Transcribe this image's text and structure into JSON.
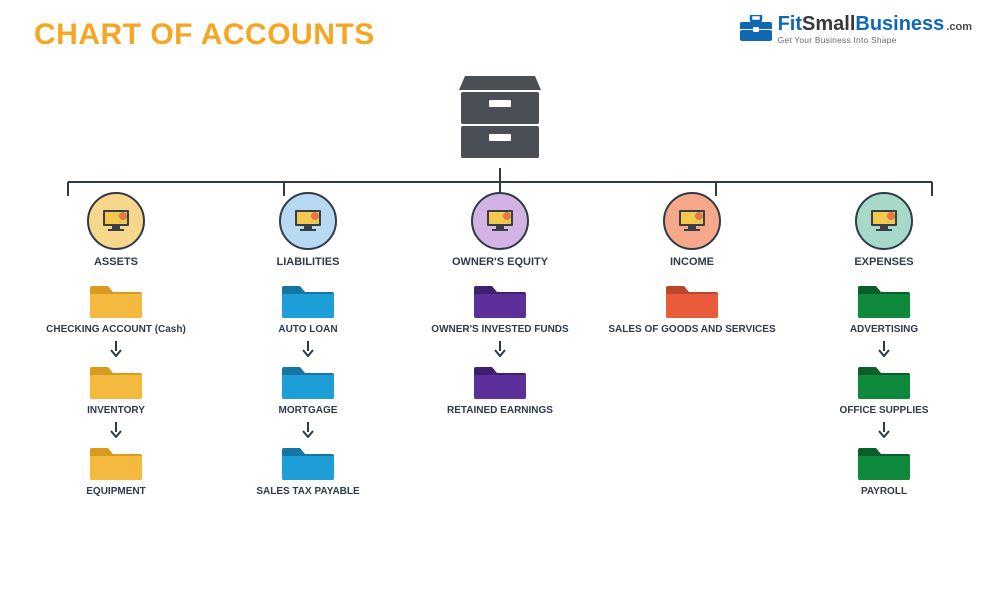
{
  "title": {
    "text": "CHART OF ACCOUNTS",
    "color": "#f5a623",
    "fontsize": 30
  },
  "logo": {
    "brand_blue": "#1068b3",
    "brand_dark": "#383838",
    "main_parts": {
      "fit": "Fit",
      "small": "Small",
      "business": "Business"
    },
    "dotcom": ".com",
    "tagline": "Get Your Business Into Shape"
  },
  "diagram": {
    "type": "tree",
    "root_icon": "file-cabinet",
    "root_icon_color": "#4a4f55",
    "connector_color": "#2f3a4a",
    "label_color": "#2f3a4a",
    "categories": [
      {
        "id": "assets",
        "label": "ASSETS",
        "circle_fill": "#f6d78b",
        "circle_border": "#2f3a4a",
        "folder_color": "#f4b93f",
        "folder_shadow": "#d89b1f",
        "items": [
          "CHECKING ACCOUNT (Cash)",
          "INVENTORY",
          "EQUIPMENT"
        ]
      },
      {
        "id": "liabilities",
        "label": "LIABILITIES",
        "circle_fill": "#b7d9f2",
        "circle_border": "#2f3a4a",
        "folder_color": "#1f9fd8",
        "folder_shadow": "#1576a3",
        "items": [
          "AUTO LOAN",
          "MORTGAGE",
          "SALES TAX PAYABLE"
        ]
      },
      {
        "id": "equity",
        "label": "OWNER'S EQUITY",
        "circle_fill": "#d3b3e4",
        "circle_border": "#2f3a4a",
        "folder_color": "#5d2f9b",
        "folder_shadow": "#3f1f6e",
        "items": [
          "OWNER'S INVESTED FUNDS",
          "RETAINED EARNINGS"
        ]
      },
      {
        "id": "income",
        "label": "INCOME",
        "circle_fill": "#f7a78a",
        "circle_border": "#2f3a4a",
        "folder_color": "#e85c3b",
        "folder_shadow": "#b8472d",
        "items": [
          "SALES OF GOODS AND SERVICES"
        ]
      },
      {
        "id": "expenses",
        "label": "EXPENSES",
        "circle_fill": "#a6d9c8",
        "circle_border": "#2f3a4a",
        "folder_color": "#0f8a3c",
        "folder_shadow": "#0a5f29",
        "items": [
          "ADVERTISING",
          "OFFICE SUPPLIES",
          "PAYROLL"
        ]
      }
    ]
  }
}
